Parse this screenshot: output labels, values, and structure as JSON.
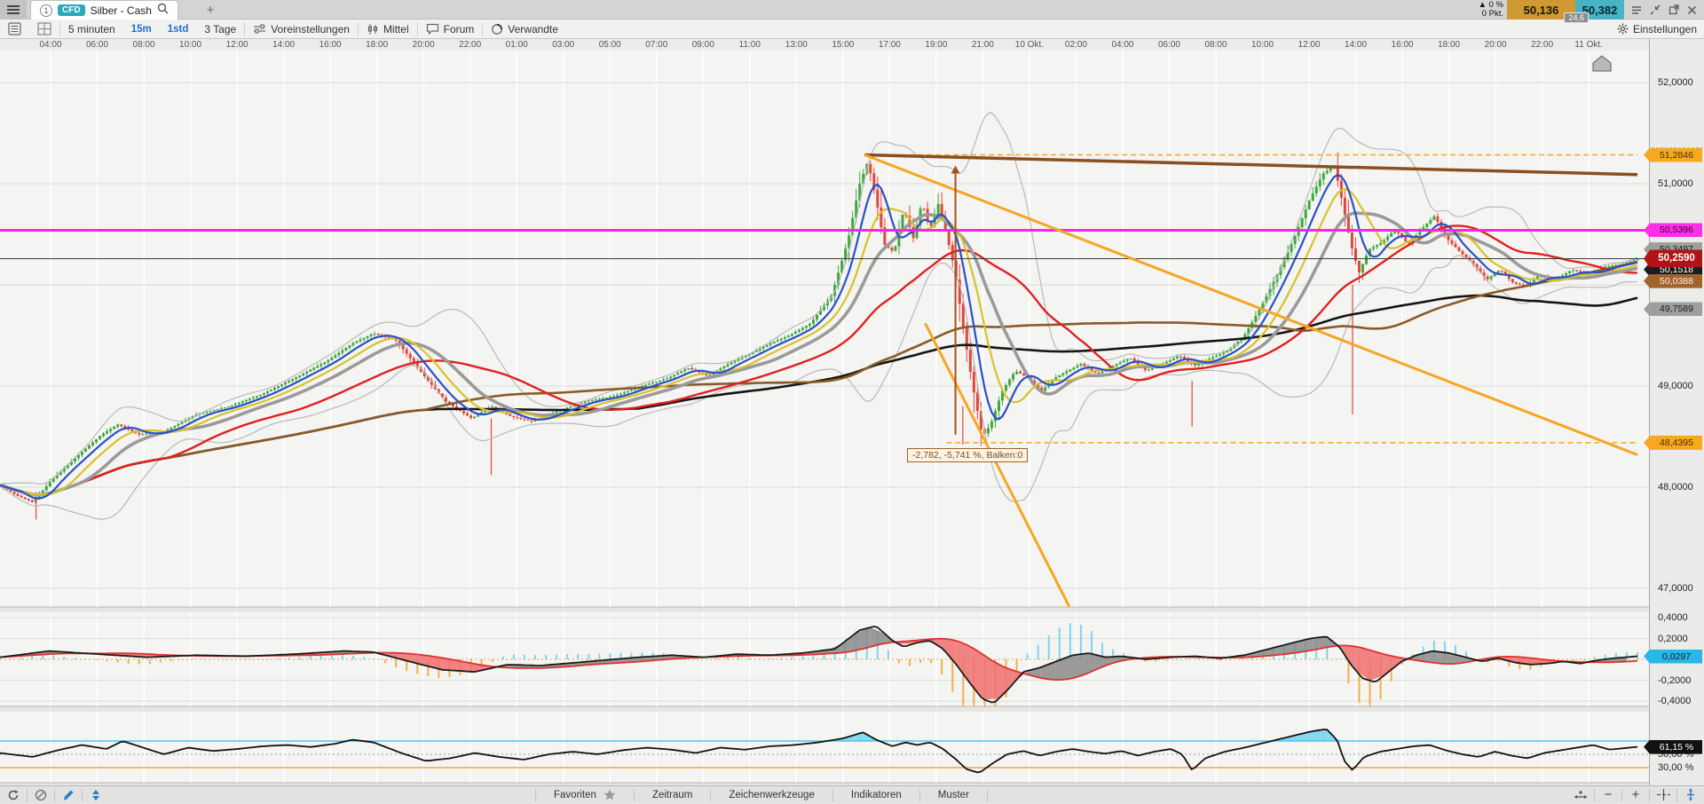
{
  "tab_bar": {
    "tab_number": "1",
    "instrument_badge": "CFD",
    "title": "Silber - Cash",
    "change_pct": "▲ 0 %",
    "change_pts": "0 Pkt.",
    "bid": "50,136",
    "ask": "50,382",
    "spread": "24,6"
  },
  "toolbar": {
    "timeframe": "5 minuten",
    "tf_15m": "15m",
    "tf_1std": "1std",
    "range": "3 Tage",
    "presets": "Voreinstellungen",
    "mittel": "Mittel",
    "forum": "Forum",
    "verwandte": "Verwandte",
    "einstellungen": "Einstellungen"
  },
  "bottom_bar": {
    "favoriten": "Favoriten",
    "zeitraum": "Zeitraum",
    "zeichenwerkzeuge": "Zeichenwerkzeuge",
    "indikatoren": "Indikatoren",
    "muster": "Muster"
  },
  "chart_data": {
    "type": "candlestick",
    "instrument": "Silber - Cash",
    "timeframe": "5 minuten",
    "range": "3 Tage",
    "x_labels": [
      "04:00",
      "06:00",
      "08:00",
      "10:00",
      "12:00",
      "14:00",
      "16:00",
      "18:00",
      "20:00",
      "22:00",
      "01:00",
      "03:00",
      "05:00",
      "07:00",
      "09:00",
      "11:00",
      "13:00",
      "15:00",
      "17:00",
      "19:00",
      "21:00",
      "10 Okt.",
      "02:00",
      "04:00",
      "06:00",
      "08:00",
      "10:00",
      "12:00",
      "14:00",
      "16:00",
      "18:00",
      "20:00",
      "22:00",
      "11 Okt."
    ],
    "y_ticks": [
      {
        "label": "52,0000",
        "price": 52.0
      },
      {
        "label": "51,0000",
        "price": 51.0
      },
      {
        "label": "49,0000",
        "price": 49.0
      },
      {
        "label": "48,0000",
        "price": 48.0
      },
      {
        "label": "47,0000",
        "price": 47.0
      }
    ],
    "price_badges": [
      {
        "label": "51,2846",
        "price": 51.2846,
        "bg": "#f6a81f",
        "fg": "#4a3000",
        "dashed": true
      },
      {
        "label": "50,5396",
        "price": 50.5396,
        "bg": "#ff2ee8",
        "fg": "#3a0035"
      },
      {
        "label": "50,3497",
        "price": 50.3497,
        "bg": "#9e9e9c",
        "fg": "#1a1a1a"
      },
      {
        "label": "50,1518",
        "price": 50.1518,
        "bg": "#1c1c1c",
        "fg": "#ffffff"
      },
      {
        "label": "50,0388",
        "price": 50.0388,
        "bg": "#a2642c",
        "fg": "#fdf2e0"
      },
      {
        "label": "49,7589",
        "price": 49.7589,
        "bg": "#9e9e9c",
        "fg": "#1a1a1a"
      },
      {
        "label": "48,4395",
        "price": 48.4395,
        "bg": "#f6a81f",
        "fg": "#4a3000",
        "dashed": true
      },
      {
        "label": "50,2590",
        "price": 50.259,
        "bg": "#b01414",
        "fg": "#ffffff",
        "big": true
      }
    ],
    "close_path": [
      [
        0.0,
        48.02
      ],
      [
        0.01,
        47.92
      ],
      [
        0.02,
        47.85
      ],
      [
        0.032,
        48.08
      ],
      [
        0.048,
        48.32
      ],
      [
        0.062,
        48.52
      ],
      [
        0.072,
        48.62
      ],
      [
        0.085,
        48.52
      ],
      [
        0.1,
        48.55
      ],
      [
        0.12,
        48.72
      ],
      [
        0.14,
        48.8
      ],
      [
        0.16,
        48.92
      ],
      [
        0.18,
        49.08
      ],
      [
        0.2,
        49.25
      ],
      [
        0.215,
        49.42
      ],
      [
        0.228,
        49.52
      ],
      [
        0.242,
        49.45
      ],
      [
        0.258,
        49.12
      ],
      [
        0.272,
        48.85
      ],
      [
        0.288,
        48.68
      ],
      [
        0.3,
        48.8
      ],
      [
        0.312,
        48.7
      ],
      [
        0.325,
        48.65
      ],
      [
        0.34,
        48.75
      ],
      [
        0.358,
        48.85
      ],
      [
        0.375,
        48.9
      ],
      [
        0.392,
        49.0
      ],
      [
        0.408,
        49.08
      ],
      [
        0.42,
        49.18
      ],
      [
        0.432,
        49.1
      ],
      [
        0.445,
        49.22
      ],
      [
        0.458,
        49.32
      ],
      [
        0.47,
        49.42
      ],
      [
        0.482,
        49.5
      ],
      [
        0.495,
        49.62
      ],
      [
        0.508,
        49.9
      ],
      [
        0.518,
        50.45
      ],
      [
        0.525,
        51.0
      ],
      [
        0.53,
        51.22
      ],
      [
        0.535,
        50.85
      ],
      [
        0.54,
        50.4
      ],
      [
        0.546,
        50.32
      ],
      [
        0.552,
        50.75
      ],
      [
        0.558,
        50.45
      ],
      [
        0.563,
        50.82
      ],
      [
        0.568,
        50.55
      ],
      [
        0.573,
        50.8
      ],
      [
        0.578,
        50.5
      ],
      [
        0.583,
        50.15
      ],
      [
        0.588,
        49.6
      ],
      [
        0.594,
        49.0
      ],
      [
        0.6,
        48.5
      ],
      [
        0.605,
        48.62
      ],
      [
        0.612,
        48.95
      ],
      [
        0.62,
        49.15
      ],
      [
        0.628,
        49.08
      ],
      [
        0.636,
        48.95
      ],
      [
        0.644,
        49.08
      ],
      [
        0.652,
        49.15
      ],
      [
        0.66,
        49.22
      ],
      [
        0.67,
        49.12
      ],
      [
        0.68,
        49.2
      ],
      [
        0.69,
        49.28
      ],
      [
        0.7,
        49.15
      ],
      [
        0.71,
        49.22
      ],
      [
        0.72,
        49.3
      ],
      [
        0.73,
        49.2
      ],
      [
        0.74,
        49.28
      ],
      [
        0.75,
        49.35
      ],
      [
        0.76,
        49.5
      ],
      [
        0.77,
        49.78
      ],
      [
        0.78,
        50.1
      ],
      [
        0.79,
        50.45
      ],
      [
        0.8,
        50.85
      ],
      [
        0.808,
        51.1
      ],
      [
        0.815,
        51.18
      ],
      [
        0.82,
        50.8
      ],
      [
        0.825,
        50.4
      ],
      [
        0.83,
        50.12
      ],
      [
        0.836,
        50.35
      ],
      [
        0.844,
        50.42
      ],
      [
        0.852,
        50.55
      ],
      [
        0.86,
        50.4
      ],
      [
        0.868,
        50.55
      ],
      [
        0.876,
        50.68
      ],
      [
        0.884,
        50.45
      ],
      [
        0.892,
        50.32
      ],
      [
        0.9,
        50.2
      ],
      [
        0.908,
        50.05
      ],
      [
        0.916,
        50.15
      ],
      [
        0.924,
        50.02
      ],
      [
        0.932,
        49.98
      ],
      [
        0.94,
        50.1
      ],
      [
        0.95,
        50.05
      ],
      [
        0.96,
        50.15
      ],
      [
        0.97,
        50.1
      ],
      [
        0.98,
        50.18
      ],
      [
        0.99,
        50.2
      ],
      [
        1.0,
        50.26
      ]
    ],
    "wicks": [
      [
        0.022,
        47.95,
        47.68
      ],
      [
        0.3,
        48.68,
        48.12
      ],
      [
        0.588,
        48.8,
        48.42
      ],
      [
        0.728,
        49.05,
        48.6
      ],
      [
        0.826,
        50.0,
        48.72
      ]
    ],
    "drawings": {
      "hline_magenta": {
        "price": 50.5396,
        "color": "#ff22ee"
      },
      "last_price_line": {
        "price": 50.259,
        "color": "#3c3c3c"
      },
      "dashed_top": {
        "price": 51.2846,
        "from_t": 0.528,
        "color": "#f5a623"
      },
      "dashed_bottom": {
        "price": 48.4395,
        "from_t": 0.578,
        "color": "#f5a623"
      },
      "trend_brown": {
        "t1": 0.528,
        "p1": 51.285,
        "t2": 1.0,
        "p2": 51.09,
        "color": "#8a4f21",
        "width": 3.5
      },
      "trend_orange_main": {
        "t1": 0.528,
        "p1": 51.285,
        "t2": 1.0,
        "p2": 48.32,
        "color": "#f5a623",
        "width": 3
      },
      "trend_orange_steep": {
        "t1": 0.565,
        "p1": 49.62,
        "t2": 0.653,
        "p2": 46.82,
        "color": "#f5a623",
        "width": 3
      },
      "arrow_up": {
        "t": 0.5835,
        "p_from": 48.52,
        "p_to": 51.18,
        "color": "#a8511e"
      }
    },
    "measure_tooltip": {
      "text": "-2,782, -5,741 %, Balken:0",
      "x": 1022,
      "y": 505
    },
    "macd": {
      "badge": {
        "label": "0,0297",
        "value": 0.0297,
        "bg": "#29b6e8",
        "fg": "#06262b"
      },
      "ticks": [
        {
          "label": "0,4000",
          "value": 0.4
        },
        {
          "label": "0,2000",
          "value": 0.2
        },
        {
          "label": "-0,2000",
          "value": -0.2
        },
        {
          "label": "-0,4000",
          "value": -0.4
        }
      ],
      "anchors": [
        [
          0.0,
          0.02
        ],
        [
          0.03,
          0.08
        ],
        [
          0.06,
          0.05
        ],
        [
          0.09,
          0.02
        ],
        [
          0.12,
          0.04
        ],
        [
          0.15,
          0.03
        ],
        [
          0.18,
          0.05
        ],
        [
          0.21,
          0.08
        ],
        [
          0.228,
          0.07
        ],
        [
          0.25,
          -0.02
        ],
        [
          0.27,
          -0.1
        ],
        [
          0.29,
          -0.12
        ],
        [
          0.31,
          -0.05
        ],
        [
          0.33,
          -0.06
        ],
        [
          0.36,
          -0.02
        ],
        [
          0.39,
          0.02
        ],
        [
          0.41,
          0.04
        ],
        [
          0.43,
          0.02
        ],
        [
          0.45,
          0.05
        ],
        [
          0.47,
          0.04
        ],
        [
          0.49,
          0.06
        ],
        [
          0.51,
          0.1
        ],
        [
          0.525,
          0.28
        ],
        [
          0.535,
          0.32
        ],
        [
          0.545,
          0.18
        ],
        [
          0.552,
          0.12
        ],
        [
          0.56,
          0.16
        ],
        [
          0.568,
          0.18
        ],
        [
          0.576,
          0.1
        ],
        [
          0.584,
          -0.05
        ],
        [
          0.592,
          -0.22
        ],
        [
          0.6,
          -0.38
        ],
        [
          0.607,
          -0.42
        ],
        [
          0.615,
          -0.3
        ],
        [
          0.625,
          -0.12
        ],
        [
          0.635,
          -0.08
        ],
        [
          0.645,
          -0.02
        ],
        [
          0.655,
          0.04
        ],
        [
          0.665,
          0.06
        ],
        [
          0.675,
          0.02
        ],
        [
          0.685,
          0.03
        ],
        [
          0.7,
          0.0
        ],
        [
          0.715,
          0.02
        ],
        [
          0.73,
          0.03
        ],
        [
          0.745,
          0.01
        ],
        [
          0.76,
          0.04
        ],
        [
          0.775,
          0.1
        ],
        [
          0.79,
          0.16
        ],
        [
          0.8,
          0.2
        ],
        [
          0.81,
          0.22
        ],
        [
          0.818,
          0.12
        ],
        [
          0.825,
          -0.05
        ],
        [
          0.832,
          -0.18
        ],
        [
          0.84,
          -0.22
        ],
        [
          0.848,
          -0.12
        ],
        [
          0.856,
          -0.02
        ],
        [
          0.865,
          0.04
        ],
        [
          0.875,
          0.08
        ],
        [
          0.885,
          0.06
        ],
        [
          0.895,
          0.02
        ],
        [
          0.905,
          -0.02
        ],
        [
          0.915,
          0.01
        ],
        [
          0.925,
          -0.03
        ],
        [
          0.935,
          -0.05
        ],
        [
          0.945,
          -0.04
        ],
        [
          0.955,
          -0.02
        ],
        [
          0.965,
          -0.04
        ],
        [
          0.975,
          -0.01
        ],
        [
          0.985,
          0.01
        ],
        [
          1.0,
          0.0297
        ]
      ]
    },
    "rsi": {
      "badge": {
        "label": "61,15 %",
        "value": 61.15,
        "bg": "#111111",
        "fg": "#ffffff"
      },
      "ticks": [
        {
          "label": "50,00 %",
          "value": 50
        },
        {
          "label": "30,00 %",
          "value": 30
        }
      ],
      "lines": {
        "upper": 70,
        "mid": 50,
        "lower": 30
      },
      "anchors": [
        [
          0.0,
          52
        ],
        [
          0.02,
          46
        ],
        [
          0.035,
          56
        ],
        [
          0.05,
          64
        ],
        [
          0.065,
          58
        ],
        [
          0.075,
          70
        ],
        [
          0.085,
          62
        ],
        [
          0.1,
          50
        ],
        [
          0.115,
          60
        ],
        [
          0.13,
          55
        ],
        [
          0.145,
          58
        ],
        [
          0.16,
          62
        ],
        [
          0.175,
          64
        ],
        [
          0.19,
          61
        ],
        [
          0.205,
          66
        ],
        [
          0.215,
          72
        ],
        [
          0.228,
          68
        ],
        [
          0.245,
          52
        ],
        [
          0.26,
          40
        ],
        [
          0.275,
          44
        ],
        [
          0.29,
          52
        ],
        [
          0.305,
          46
        ],
        [
          0.32,
          42
        ],
        [
          0.335,
          50
        ],
        [
          0.35,
          54
        ],
        [
          0.365,
          50
        ],
        [
          0.38,
          56
        ],
        [
          0.395,
          60
        ],
        [
          0.41,
          57
        ],
        [
          0.425,
          52
        ],
        [
          0.44,
          60
        ],
        [
          0.455,
          57
        ],
        [
          0.47,
          62
        ],
        [
          0.485,
          64
        ],
        [
          0.5,
          68
        ],
        [
          0.515,
          74
        ],
        [
          0.527,
          83
        ],
        [
          0.535,
          72
        ],
        [
          0.545,
          62
        ],
        [
          0.553,
          68
        ],
        [
          0.56,
          64
        ],
        [
          0.568,
          68
        ],
        [
          0.576,
          58
        ],
        [
          0.584,
          42
        ],
        [
          0.59,
          28
        ],
        [
          0.598,
          22
        ],
        [
          0.606,
          36
        ],
        [
          0.615,
          50
        ],
        [
          0.625,
          55
        ],
        [
          0.635,
          48
        ],
        [
          0.645,
          54
        ],
        [
          0.655,
          58
        ],
        [
          0.665,
          54
        ],
        [
          0.675,
          51
        ],
        [
          0.685,
          55
        ],
        [
          0.695,
          48
        ],
        [
          0.705,
          54
        ],
        [
          0.715,
          58
        ],
        [
          0.722,
          50
        ],
        [
          0.728,
          26
        ],
        [
          0.736,
          44
        ],
        [
          0.748,
          54
        ],
        [
          0.76,
          60
        ],
        [
          0.77,
          66
        ],
        [
          0.78,
          72
        ],
        [
          0.79,
          78
        ],
        [
          0.8,
          84
        ],
        [
          0.81,
          88
        ],
        [
          0.8165,
          72
        ],
        [
          0.821,
          40
        ],
        [
          0.826,
          26
        ],
        [
          0.833,
          46
        ],
        [
          0.843,
          54
        ],
        [
          0.853,
          58
        ],
        [
          0.863,
          62
        ],
        [
          0.873,
          64
        ],
        [
          0.883,
          56
        ],
        [
          0.893,
          50
        ],
        [
          0.903,
          46
        ],
        [
          0.913,
          54
        ],
        [
          0.923,
          48
        ],
        [
          0.933,
          44
        ],
        [
          0.943,
          52
        ],
        [
          0.953,
          56
        ],
        [
          0.963,
          60
        ],
        [
          0.973,
          64
        ],
        [
          0.983,
          57
        ],
        [
          1.0,
          61.15
        ]
      ]
    }
  }
}
